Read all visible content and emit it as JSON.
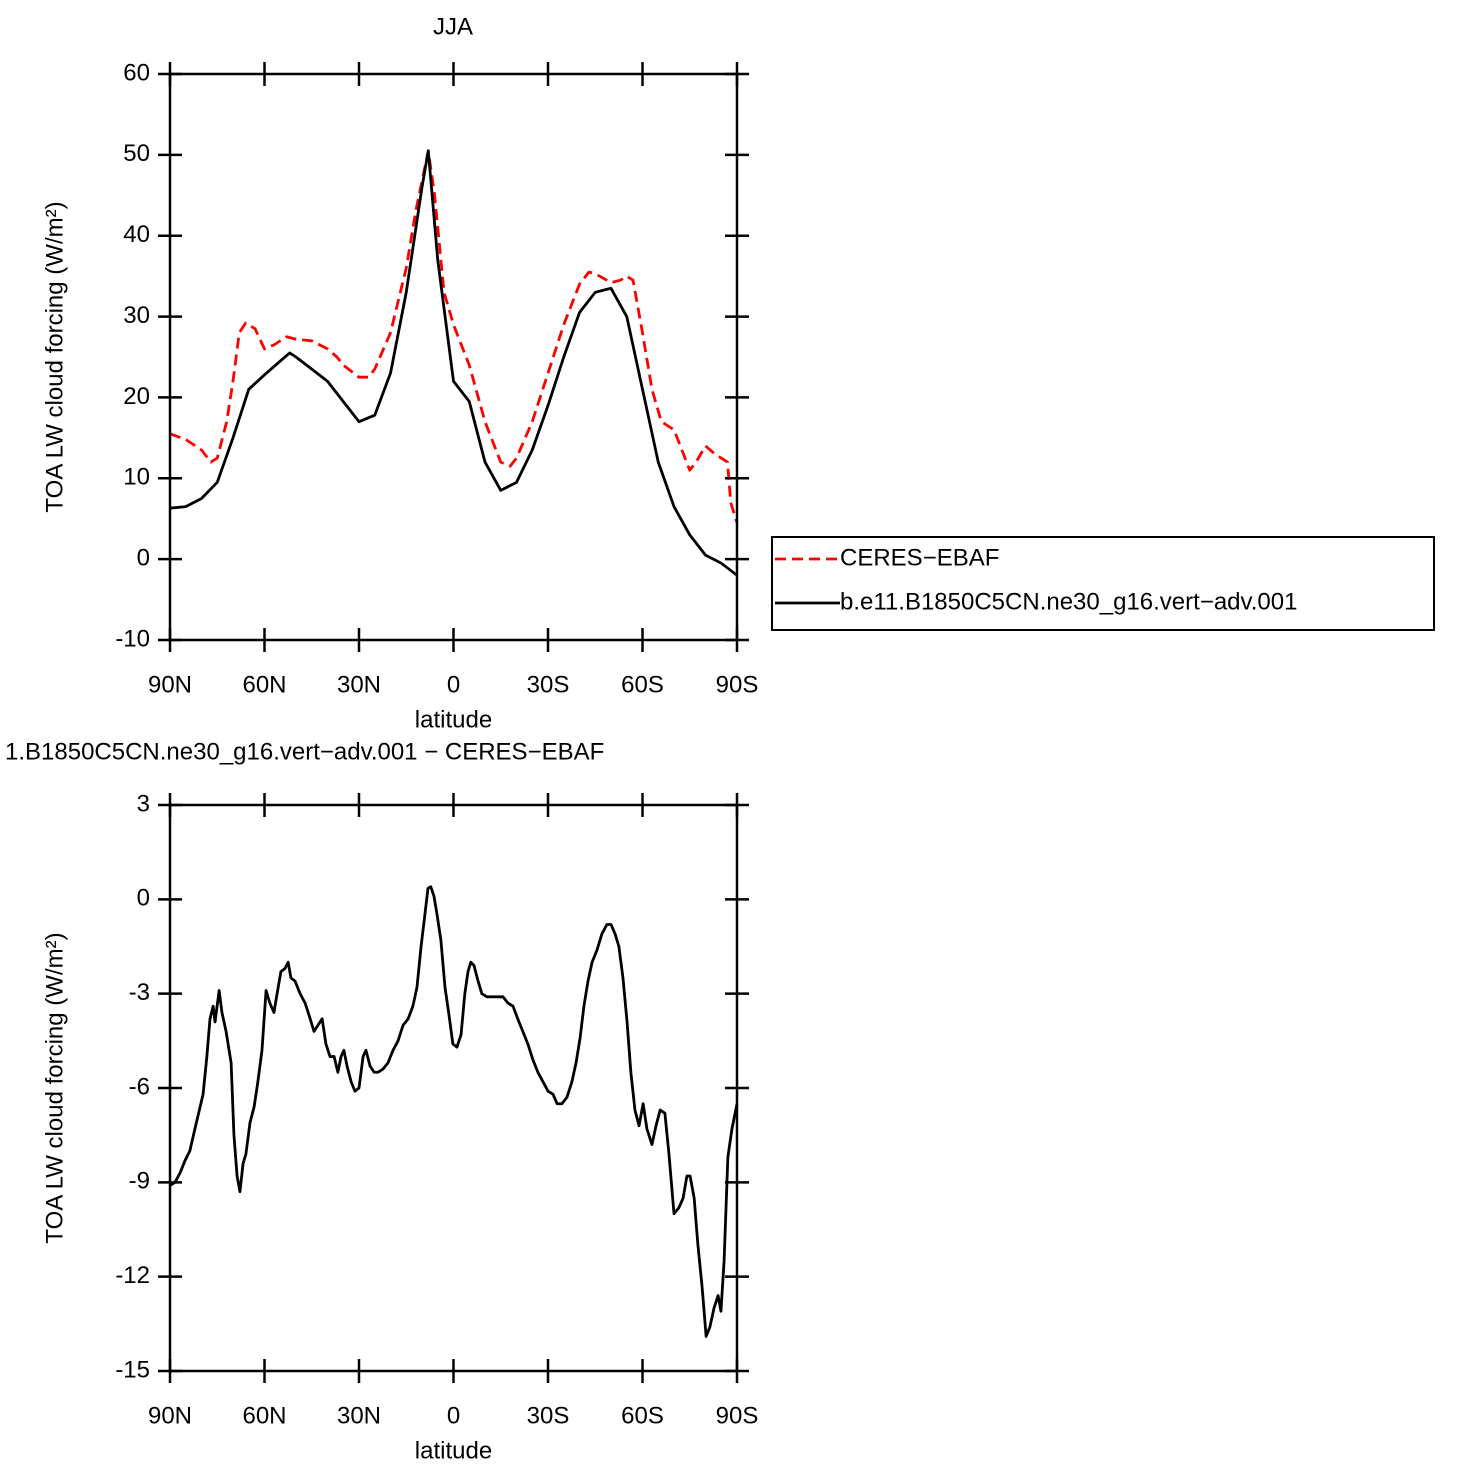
{
  "chart_data": [
    {
      "type": "line",
      "title": "JJA",
      "xlabel": "latitude",
      "ylabel": "TOA LW cloud forcing (W/m²)",
      "xlim": [
        90,
        -90
      ],
      "xticks": [
        {
          "value": 90,
          "label": "90N"
        },
        {
          "value": 60,
          "label": "60N"
        },
        {
          "value": 30,
          "label": "30N"
        },
        0,
        {
          "value": -30,
          "label": "30S"
        },
        {
          "value": -60,
          "label": "60S"
        },
        {
          "value": -90,
          "label": "90S"
        }
      ],
      "ylim": [
        -10,
        60
      ],
      "yticks": [
        -10,
        0,
        10,
        20,
        30,
        40,
        50,
        60
      ],
      "legend_position": "right",
      "series": [
        {
          "name": "CERES−EBAF",
          "color": "#ff0000",
          "dashed": true,
          "x": [
            90,
            85,
            80,
            77,
            75,
            72,
            70,
            68,
            66,
            63,
            60,
            57,
            53,
            50,
            45,
            40,
            37,
            35,
            30,
            27,
            25,
            20,
            15,
            12,
            8,
            6,
            3,
            0,
            -5,
            -10,
            -15,
            -18,
            -20,
            -25,
            -30,
            -35,
            -40,
            -43,
            -45,
            -50,
            -53,
            -55,
            -57,
            -60,
            -63,
            -66,
            -70,
            -73,
            -75,
            -77,
            -80,
            -83,
            -87,
            -88,
            -90
          ],
          "values": [
            15.5,
            14.8,
            13.5,
            12,
            12.5,
            17,
            22,
            28,
            29.2,
            28.5,
            26,
            26.5,
            27.5,
            27.2,
            27,
            26,
            25,
            24,
            22.5,
            22.5,
            23.5,
            28,
            36,
            43,
            50.5,
            45,
            33,
            29,
            24,
            17,
            12,
            11.5,
            12.5,
            17,
            23,
            29,
            34,
            35.5,
            35.3,
            34.2,
            34.5,
            35,
            34.5,
            28,
            21,
            17,
            16,
            13,
            11,
            12,
            14,
            13,
            12,
            7,
            4.5
          ]
        },
        {
          "name": "b.e11.B1850C5CN.ne30_g16.vert−adv.001",
          "color": "#000000",
          "dashed": false,
          "x": [
            90,
            85,
            80,
            75,
            70,
            65,
            60,
            55,
            52,
            50,
            45,
            40,
            35,
            30,
            25,
            20,
            15,
            10,
            8,
            5,
            0,
            -5,
            -10,
            -15,
            -20,
            -25,
            -30,
            -35,
            -40,
            -45,
            -50,
            -55,
            -60,
            -65,
            -70,
            -75,
            -80,
            -85,
            -90
          ],
          "values": [
            6.3,
            6.5,
            7.5,
            9.5,
            15,
            21,
            22.8,
            24.5,
            25.5,
            25,
            23.5,
            22,
            19.5,
            17,
            17.8,
            23,
            33,
            46,
            50.5,
            37,
            22,
            19.5,
            12,
            8.5,
            9.5,
            13.5,
            19,
            25,
            30.5,
            33,
            33.5,
            30,
            21,
            12,
            6.5,
            3,
            0.5,
            -0.5,
            -2
          ]
        }
      ]
    },
    {
      "type": "line",
      "title": "1.B1850C5CN.ne30_g16.vert−adv.001 − CERES−EBAF",
      "xlabel": "latitude",
      "ylabel": "TOA LW cloud forcing (W/m²)",
      "xlim": [
        90,
        -90
      ],
      "xticks": [
        {
          "value": 90,
          "label": "90N"
        },
        {
          "value": 60,
          "label": "60N"
        },
        {
          "value": 30,
          "label": "30N"
        },
        0,
        {
          "value": -30,
          "label": "30S"
        },
        {
          "value": -60,
          "label": "60S"
        },
        {
          "value": -90,
          "label": "90S"
        }
      ],
      "ylim": [
        -15,
        3
      ],
      "yticks": [
        -15,
        -12,
        -9,
        -6,
        -3,
        0,
        3
      ],
      "series": [
        {
          "color": "#000000",
          "dashed": false,
          "x": [
            90,
            88.4,
            86.8,
            85.2,
            83.7,
            82.1,
            79.5,
            78.3,
            77.3,
            76.3,
            75.7,
            74.4,
            73.5,
            72.2,
            70.6,
            69.7,
            68.7,
            67.8,
            66.8,
            65.9,
            64.6,
            63.3,
            62.1,
            60.8,
            59.5,
            58.3,
            57,
            56,
            54.8,
            53.5,
            52.5,
            51.6,
            50.3,
            48.7,
            47.1,
            45.5,
            44.3,
            43,
            41.7,
            40.5,
            39.2,
            37.9,
            36.7,
            35.7,
            34.8,
            33.8,
            32.5,
            31.3,
            30,
            28.7,
            27.8,
            26.5,
            25.2,
            24,
            22.4,
            20.8,
            19.2,
            17.6,
            16,
            14.4,
            12.9,
            11.6,
            10.3,
            9.1,
            8.1,
            7.2,
            6.2,
            5.2,
            4,
            2.7,
            1.4,
            0.2,
            -1.1,
            -2.4,
            -3.6,
            -4.6,
            -5.5,
            -6.5,
            -7.8,
            -9,
            -10.6,
            -12.5,
            -14.1,
            -15.7,
            -17.3,
            -18.9,
            -20.4,
            -22,
            -23.6,
            -25.2,
            -26.8,
            -28.4,
            -30,
            -31.6,
            -32.9,
            -34.4,
            -36,
            -37.6,
            -38.9,
            -40.2,
            -41.4,
            -42.7,
            -44,
            -45.6,
            -47.1,
            -48.7,
            -50,
            -51.3,
            -52.5,
            -53.8,
            -55.1,
            -56.3,
            -57.6,
            -58.9,
            -60.2,
            -61.4,
            -63,
            -64.3,
            -65.6,
            -67.1,
            -68.4,
            -70,
            -71.6,
            -72.9,
            -74.1,
            -75.1,
            -76.4,
            -77.6,
            -78.9,
            -80.2,
            -81.4,
            -82.7,
            -84,
            -84.9,
            -85.9,
            -87.1,
            -88.4,
            -90
          ],
          "values": [
            -9.1,
            -9,
            -8.7,
            -8.3,
            -8,
            -7.3,
            -6.2,
            -5,
            -3.8,
            -3.4,
            -3.9,
            -2.9,
            -3.6,
            -4.2,
            -5.2,
            -7.5,
            -8.8,
            -9.3,
            -8.4,
            -8.1,
            -7.1,
            -6.6,
            -5.8,
            -4.8,
            -2.9,
            -3.3,
            -3.6,
            -3,
            -2.3,
            -2.2,
            -2,
            -2.5,
            -2.6,
            -3,
            -3.3,
            -3.8,
            -4.2,
            -4,
            -3.8,
            -4.6,
            -5,
            -5,
            -5.5,
            -5,
            -4.8,
            -5.3,
            -5.8,
            -6.1,
            -6,
            -5,
            -4.8,
            -5.3,
            -5.5,
            -5.5,
            -5.4,
            -5.2,
            -4.8,
            -4.5,
            -4,
            -3.8,
            -3.4,
            -2.8,
            -1.5,
            -0.5,
            0.35,
            0.4,
            0.1,
            -0.5,
            -1.3,
            -2.8,
            -3.7,
            -4.6,
            -4.7,
            -4.3,
            -3,
            -2.3,
            -2,
            -2.1,
            -2.6,
            -3,
            -3.1,
            -3.1,
            -3.1,
            -3.1,
            -3.3,
            -3.4,
            -3.8,
            -4.2,
            -4.6,
            -5.1,
            -5.5,
            -5.8,
            -6.1,
            -6.2,
            -6.5,
            -6.5,
            -6.3,
            -5.8,
            -5.2,
            -4.4,
            -3.4,
            -2.6,
            -2,
            -1.6,
            -1.1,
            -0.8,
            -0.8,
            -1.1,
            -1.5,
            -2.5,
            -3.9,
            -5.5,
            -6.7,
            -7.2,
            -6.5,
            -7.3,
            -7.8,
            -7.2,
            -6.7,
            -6.8,
            -8.1,
            -10,
            -9.8,
            -9.5,
            -8.8,
            -8.8,
            -9.5,
            -11,
            -12.3,
            -13.9,
            -13.6,
            -13,
            -12.6,
            -13.1,
            -11.5,
            -8.2,
            -7.3,
            -6.5
          ]
        }
      ]
    }
  ]
}
